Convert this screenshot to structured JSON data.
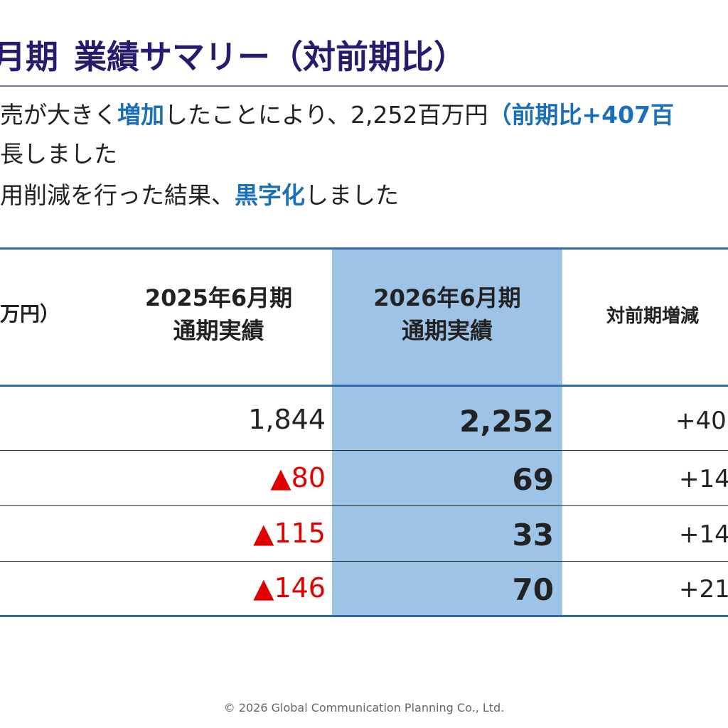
{
  "title": {
    "prefix": "月期",
    "main": "業績サマリー（対前期比）"
  },
  "bullets": [
    {
      "a": "売が大きく",
      "hl1": "増加",
      "b": "したことにより、2,252百万円",
      "hl2": "（前期比+407百"
    },
    {
      "a": "長しました"
    },
    {
      "a": "用削減を行った結果、",
      "hl1": "黒字化",
      "b": "しました"
    }
  ],
  "table": {
    "unit_label": "万円）",
    "columns": [
      {
        "line1": "2025年6月期",
        "line2": "通期実績"
      },
      {
        "line1": "2026年6月期",
        "line2": "通期実績"
      },
      {
        "line1": "対前期増減"
      }
    ],
    "rows": [
      {
        "prev": "1,844",
        "prev_negative": false,
        "curr": "2,252",
        "diff": "+40"
      },
      {
        "prev": "▲80",
        "prev_negative": true,
        "curr": "69",
        "diff": "+14"
      },
      {
        "prev": "▲115",
        "prev_negative": true,
        "curr": "33",
        "diff": "+14"
      },
      {
        "prev": "▲146",
        "prev_negative": true,
        "curr": "70",
        "diff": "+21"
      }
    ]
  },
  "footer": "© 2026 Global Communication Planning Co., Ltd.",
  "colors": {
    "title": "#2a1a6e",
    "highlight_text": "#1b6fb8",
    "highlight_column": "#9dc3e6",
    "table_rule": "#2e6aab",
    "negative": "#e00000"
  }
}
